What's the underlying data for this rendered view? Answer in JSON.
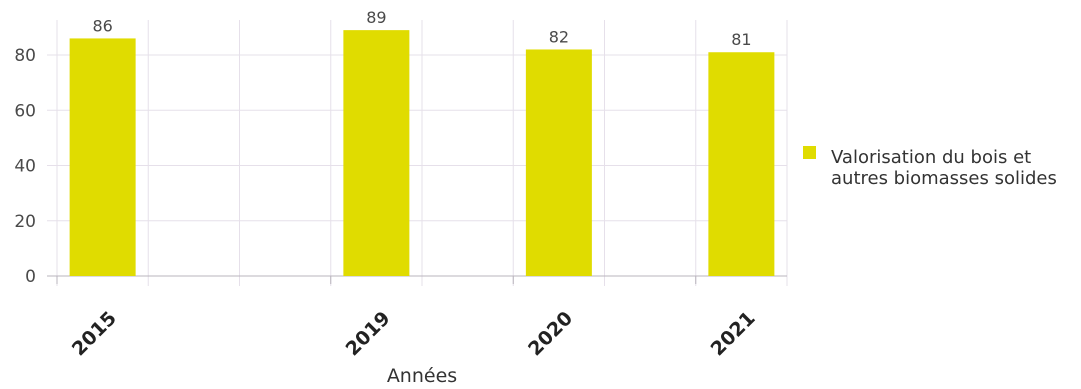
{
  "chart_data": {
    "type": "bar",
    "categories": [
      "2015",
      "2019",
      "2020",
      "2021"
    ],
    "series": [
      {
        "name": "Valorisation du bois et autres biomasses solides",
        "name_lines": [
          "Valorisation du bois et",
          "autres biomasses solides"
        ],
        "values": [
          86,
          89,
          82,
          81
        ],
        "color": "#e0dc00"
      }
    ],
    "data_labels": [
      "86",
      "89",
      "82",
      "81"
    ],
    "xlabel": "Années",
    "ylabel": "",
    "ylim": [
      0,
      90
    ],
    "yticks": [
      0,
      20,
      40,
      60,
      80
    ],
    "ytick_labels": [
      "0",
      "20",
      "40",
      "60",
      "80"
    ],
    "grid": true,
    "legend_position": "right"
  }
}
